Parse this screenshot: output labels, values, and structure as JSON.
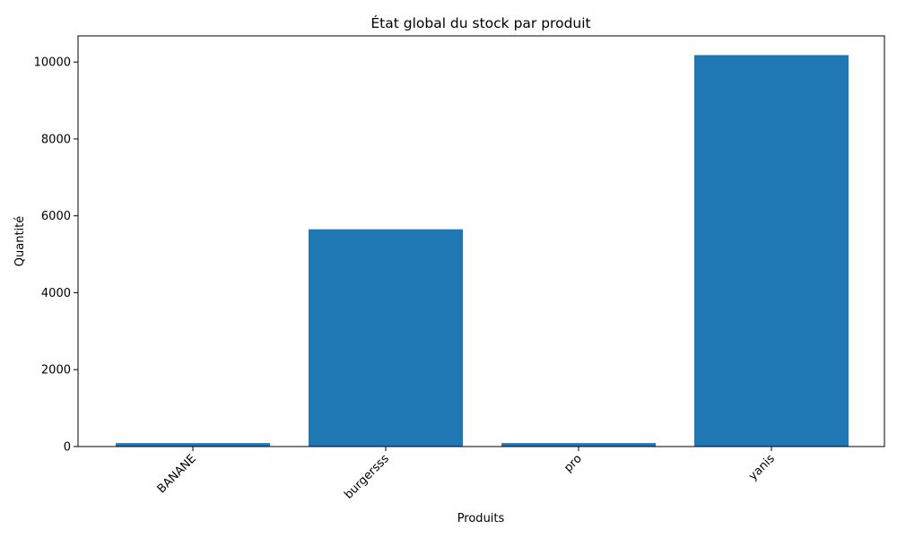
{
  "chart_data": {
    "type": "bar",
    "title": "État global du stock par produit",
    "xlabel": "Produits",
    "ylabel": "Quantité",
    "categories": [
      "BANANE",
      "burgersss",
      "pro",
      "yanis"
    ],
    "values": [
      90,
      5650,
      90,
      10180
    ],
    "ylim": [
      0,
      10680
    ],
    "yticks": [
      0,
      2000,
      4000,
      6000,
      8000,
      10000
    ],
    "bar_color": "#1f77b4",
    "grid": false,
    "legend": "none"
  }
}
